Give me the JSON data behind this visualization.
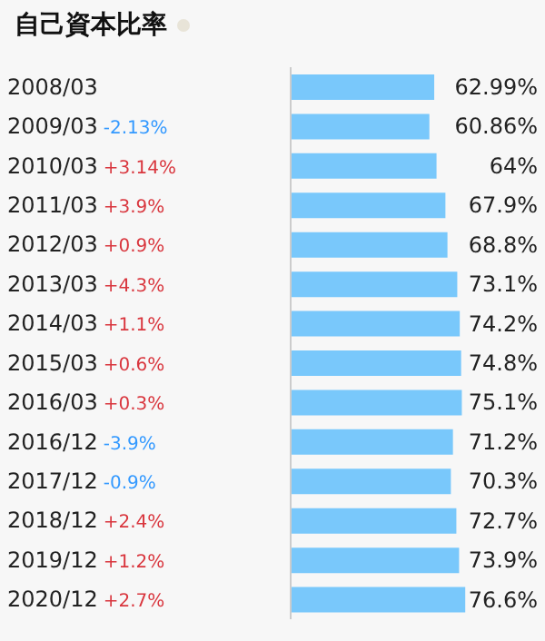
{
  "chart_data": {
    "type": "bar",
    "orientation": "horizontal",
    "title": "自己資本比率",
    "categories": [
      "2008/03",
      "2009/03",
      "2010/03",
      "2011/03",
      "2012/03",
      "2013/03",
      "2014/03",
      "2015/03",
      "2016/03",
      "2016/12",
      "2017/12",
      "2018/12",
      "2019/12",
      "2020/12"
    ],
    "values": [
      62.99,
      60.86,
      64,
      67.9,
      68.8,
      73.1,
      74.2,
      74.8,
      75.1,
      71.2,
      70.3,
      72.7,
      73.9,
      76.6
    ],
    "value_labels": [
      "62.99%",
      "60.86%",
      "64%",
      "67.9%",
      "68.8%",
      "73.1%",
      "74.2%",
      "74.8%",
      "75.1%",
      "71.2%",
      "70.3%",
      "72.7%",
      "73.9%",
      "76.6%"
    ],
    "color": "#79c8fb",
    "xlim": [
      0,
      110
    ],
    "tick_labels": "y",
    "annotations": [
      "-2.13%",
      "+3.14%",
      "+3.9%",
      "+0.9%",
      "+4.3%",
      "+1.1%",
      "+0.6%",
      "+0.3%",
      "-3.9%",
      "-0.9%",
      "+2.4%",
      "+1.2%",
      "+2.7%"
    ]
  }
}
